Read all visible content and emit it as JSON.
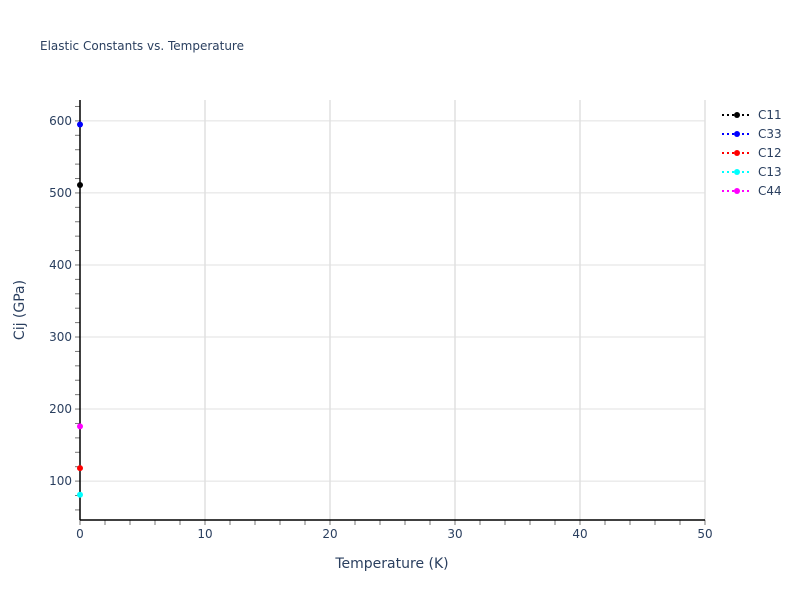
{
  "chart_data": {
    "type": "scatter",
    "mode": "lines+markers",
    "title": "Elastic Constants vs. Temperature",
    "xlabel": "Temperature (K)",
    "ylabel": "Cij (GPa)",
    "xlim": [
      0,
      50
    ],
    "ylim": [
      46,
      629
    ],
    "xticks": [
      0,
      10,
      20,
      30,
      40,
      50
    ],
    "yticks": [
      100,
      200,
      300,
      400,
      500,
      600
    ],
    "grid": true,
    "legend_placement": "top-right",
    "series": [
      {
        "name": "C11",
        "color": "#000000",
        "x": [
          0
        ],
        "y": [
          511
        ]
      },
      {
        "name": "C33",
        "color": "#0000ff",
        "x": [
          0
        ],
        "y": [
          595
        ]
      },
      {
        "name": "C12",
        "color": "#ff0000",
        "x": [
          0
        ],
        "y": [
          118
        ]
      },
      {
        "name": "C13",
        "color": "#00ffff",
        "x": [
          0
        ],
        "y": [
          81
        ]
      },
      {
        "name": "C44",
        "color": "#ff00ff",
        "x": [
          0
        ],
        "y": [
          176
        ]
      }
    ]
  }
}
